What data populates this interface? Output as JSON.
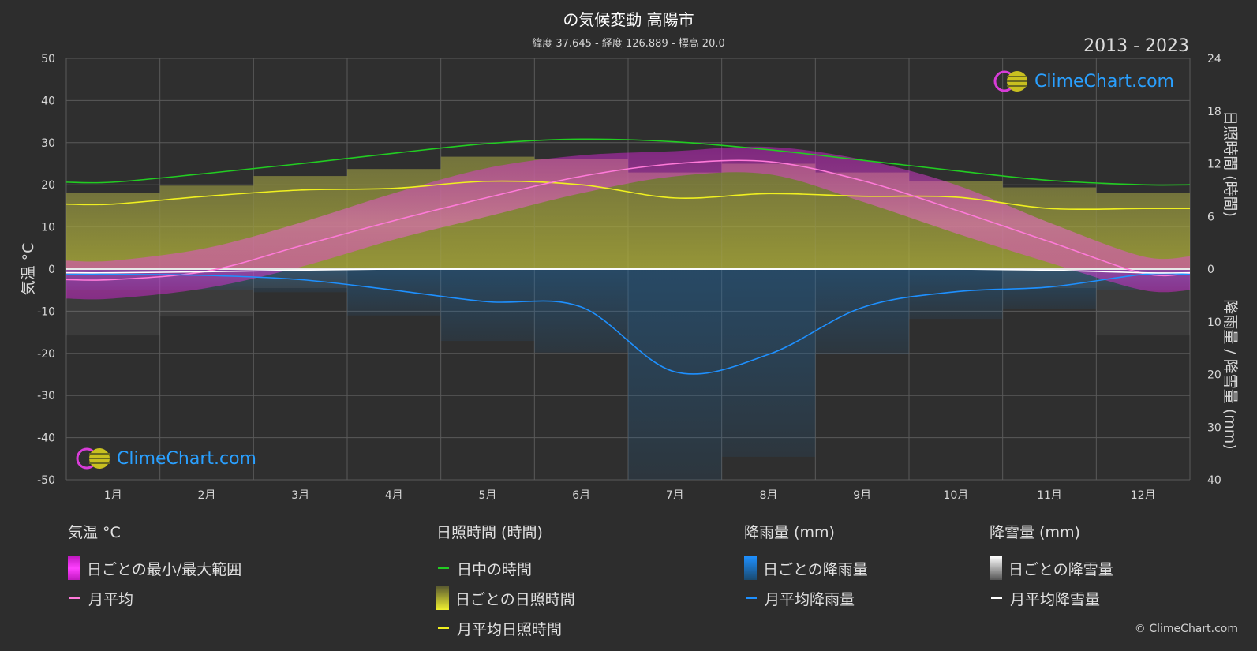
{
  "header": {
    "title": "の気候変動 高陽市",
    "subtitle": "緯度 37.645 - 経度 126.889 - 標高 20.0",
    "years": "2013 - 2023"
  },
  "axes": {
    "left_label": "気温 °C",
    "right_top_label": "日照時間 (時間)",
    "right_bottom_label": "降雨量 / 降雪量 (mm)"
  },
  "logo": {
    "text": "ClimeChart.com"
  },
  "copyright": "© ClimeChart.com",
  "legend": {
    "temperature": {
      "title": "気温 °C",
      "items": [
        "日ごとの最小/最大範囲",
        "月平均"
      ]
    },
    "sunshine": {
      "title": "日照時間 (時間)",
      "items": [
        "日中の時間",
        "日ごとの日照時間",
        "月平均日照時間"
      ]
    },
    "rain": {
      "title": "降雨量 (mm)",
      "items": [
        "日ごとの降雨量",
        "月平均降雨量"
      ]
    },
    "snow": {
      "title": "降雪量 (mm)",
      "items": [
        "日ごとの降雪量",
        "月平均降雪量"
      ]
    }
  },
  "colors": {
    "background": "#2d2d2d",
    "temp_range": "#e01ee0",
    "temp_mean": "#ff7ad9",
    "daylight": "#22cc22",
    "sunshine_bar": "#c8c83a",
    "sunshine_mean": "#f0f020",
    "rain": "#1e7bd1",
    "rain_mean": "#1e90ff",
    "snow": "#cfcfcf",
    "snow_mean": "#ffffff",
    "logo_text": "#2aa0ff"
  },
  "chart_data": {
    "type": "line",
    "categories": [
      "1月",
      "2月",
      "3月",
      "4月",
      "5月",
      "6月",
      "7月",
      "8月",
      "9月",
      "10月",
      "11月",
      "12月"
    ],
    "y_left": {
      "label": "気温 °C",
      "range": [
        -50,
        50
      ],
      "ticks": [
        50,
        40,
        30,
        20,
        10,
        0,
        -10,
        -20,
        -30,
        -40,
        -50
      ]
    },
    "y_right_top": {
      "label": "日照時間 (時間)",
      "range": [
        0,
        24
      ],
      "ticks": [
        24,
        18,
        12,
        6,
        0
      ]
    },
    "y_right_bottom": {
      "label": "降雨量 / 降雪量 (mm)",
      "range": [
        0,
        40
      ],
      "ticks": [
        0,
        10,
        20,
        30,
        40
      ]
    },
    "grid": true,
    "series": [
      {
        "name": "日ごとの最小/最大範囲",
        "unit": "°C",
        "min": [
          -7,
          -4.5,
          0.5,
          7,
          12.5,
          18,
          22,
          22.5,
          16,
          8.5,
          1.5,
          -5
        ],
        "max": [
          2,
          5,
          11,
          18,
          24,
          27,
          28,
          29,
          26,
          20,
          11,
          3
        ]
      },
      {
        "name": "月平均",
        "unit": "°C",
        "values": [
          -2.5,
          -0.5,
          5.5,
          11.5,
          17,
          22,
          25,
          25.5,
          21,
          14,
          6.5,
          -1
        ]
      },
      {
        "name": "日中の時間",
        "unit": "時間",
        "values": [
          9.9,
          10.9,
          12.0,
          13.2,
          14.3,
          14.8,
          14.5,
          13.6,
          12.4,
          11.2,
          10.1,
          9.6
        ]
      },
      {
        "name": "日ごとの日照時間",
        "unit": "時間",
        "values": [
          8.7,
          9.5,
          10.6,
          11.4,
          12.8,
          12.5,
          11.0,
          12.0,
          11.0,
          10.0,
          9.3,
          8.7
        ]
      },
      {
        "name": "月平均日照時間",
        "unit": "時間",
        "values": [
          7.4,
          8.3,
          9.0,
          9.2,
          10.0,
          9.6,
          8.1,
          8.6,
          8.3,
          8.2,
          6.9,
          6.9
        ]
      },
      {
        "name": "月平均降雨量",
        "unit": "mm",
        "values": [
          1.0,
          1.2,
          2.0,
          4.0,
          6.2,
          7.2,
          19.5,
          16.2,
          7.3,
          4.3,
          3.4,
          1.0
        ]
      },
      {
        "name": "月平均降雪量",
        "unit": "mm",
        "values": [
          0.7,
          0.5,
          0.2,
          0,
          0,
          0,
          0,
          0,
          0,
          0,
          0.2,
          0.7
        ]
      }
    ]
  }
}
